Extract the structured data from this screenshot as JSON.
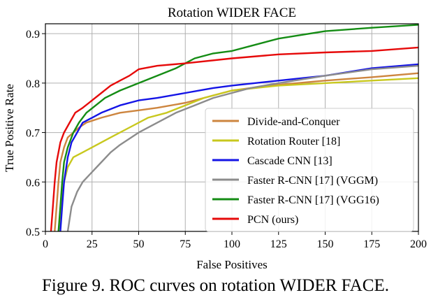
{
  "chart_data": {
    "type": "line",
    "title": "Rotation WIDER FACE",
    "xlabel": "False Positives",
    "ylabel": "True Positive Rate",
    "xlim": [
      0,
      200
    ],
    "ylim": [
      0.5,
      0.92
    ],
    "x_ticks": [
      0,
      25,
      50,
      75,
      100,
      125,
      150,
      175,
      200
    ],
    "x_tick_labels": [
      "0",
      "25",
      "50",
      "75",
      "100",
      "125",
      "150",
      "175",
      "200"
    ],
    "y_ticks": [
      0.5,
      0.6,
      0.7,
      0.8,
      0.9
    ],
    "y_tick_labels": [
      "0.5",
      "0.6",
      "0.7",
      "0.8",
      "0.9"
    ],
    "grid": true,
    "legend_position": "bottom-right",
    "series": [
      {
        "name": "Divide-and-Conquer",
        "color": "#cd853f",
        "points": [
          [
            5,
            0.5
          ],
          [
            6,
            0.55
          ],
          [
            7,
            0.6
          ],
          [
            8,
            0.64
          ],
          [
            10,
            0.67
          ],
          [
            12,
            0.69
          ],
          [
            15,
            0.7
          ],
          [
            18,
            0.71
          ],
          [
            22,
            0.72
          ],
          [
            30,
            0.73
          ],
          [
            40,
            0.74
          ],
          [
            50,
            0.745
          ],
          [
            60,
            0.75
          ],
          [
            75,
            0.76
          ],
          [
            90,
            0.775
          ],
          [
            100,
            0.785
          ],
          [
            120,
            0.795
          ],
          [
            150,
            0.805
          ],
          [
            175,
            0.812
          ],
          [
            200,
            0.82
          ]
        ]
      },
      {
        "name": "Rotation Router [18]",
        "color": "#c8c81e",
        "points": [
          [
            7,
            0.5
          ],
          [
            8,
            0.53
          ],
          [
            9,
            0.57
          ],
          [
            10,
            0.6
          ],
          [
            12,
            0.63
          ],
          [
            15,
            0.65
          ],
          [
            20,
            0.66
          ],
          [
            25,
            0.67
          ],
          [
            30,
            0.68
          ],
          [
            35,
            0.69
          ],
          [
            45,
            0.71
          ],
          [
            55,
            0.73
          ],
          [
            65,
            0.74
          ],
          [
            75,
            0.755
          ],
          [
            85,
            0.77
          ],
          [
            100,
            0.785
          ],
          [
            125,
            0.795
          ],
          [
            150,
            0.8
          ],
          [
            175,
            0.805
          ],
          [
            200,
            0.81
          ]
        ]
      },
      {
        "name": "Cascade CNN [13]",
        "color": "#1414e6",
        "points": [
          [
            8,
            0.5
          ],
          [
            9,
            0.55
          ],
          [
            10,
            0.6
          ],
          [
            12,
            0.65
          ],
          [
            14,
            0.68
          ],
          [
            17,
            0.7
          ],
          [
            20,
            0.72
          ],
          [
            25,
            0.73
          ],
          [
            30,
            0.74
          ],
          [
            40,
            0.755
          ],
          [
            50,
            0.765
          ],
          [
            60,
            0.77
          ],
          [
            75,
            0.78
          ],
          [
            90,
            0.79
          ],
          [
            100,
            0.795
          ],
          [
            125,
            0.805
          ],
          [
            150,
            0.815
          ],
          [
            175,
            0.83
          ],
          [
            200,
            0.838
          ]
        ]
      },
      {
        "name": "Faster R-CNN [17] (VGGM)",
        "color": "#8c8c8c",
        "points": [
          [
            12,
            0.5
          ],
          [
            14,
            0.55
          ],
          [
            17,
            0.58
          ],
          [
            20,
            0.6
          ],
          [
            25,
            0.62
          ],
          [
            30,
            0.64
          ],
          [
            35,
            0.66
          ],
          [
            40,
            0.675
          ],
          [
            50,
            0.7
          ],
          [
            60,
            0.72
          ],
          [
            70,
            0.74
          ],
          [
            80,
            0.755
          ],
          [
            90,
            0.77
          ],
          [
            100,
            0.78
          ],
          [
            110,
            0.79
          ],
          [
            125,
            0.8
          ],
          [
            150,
            0.815
          ],
          [
            175,
            0.828
          ],
          [
            200,
            0.835
          ]
        ]
      },
      {
        "name": "Faster R-CNN [17] (VGG16)",
        "color": "#148c14",
        "points": [
          [
            7,
            0.5
          ],
          [
            8,
            0.55
          ],
          [
            9,
            0.6
          ],
          [
            10,
            0.64
          ],
          [
            12,
            0.67
          ],
          [
            15,
            0.7
          ],
          [
            18,
            0.72
          ],
          [
            22,
            0.74
          ],
          [
            27,
            0.755
          ],
          [
            32,
            0.77
          ],
          [
            40,
            0.785
          ],
          [
            50,
            0.8
          ],
          [
            60,
            0.815
          ],
          [
            70,
            0.83
          ],
          [
            80,
            0.85
          ],
          [
            90,
            0.86
          ],
          [
            100,
            0.865
          ],
          [
            110,
            0.875
          ],
          [
            125,
            0.89
          ],
          [
            150,
            0.905
          ],
          [
            175,
            0.912
          ],
          [
            200,
            0.918
          ]
        ]
      },
      {
        "name": "PCN (ours)",
        "color": "#e60a0a",
        "points": [
          [
            3,
            0.5
          ],
          [
            4,
            0.55
          ],
          [
            5,
            0.6
          ],
          [
            6,
            0.64
          ],
          [
            7,
            0.66
          ],
          [
            8,
            0.68
          ],
          [
            10,
            0.7
          ],
          [
            13,
            0.72
          ],
          [
            16,
            0.74
          ],
          [
            20,
            0.75
          ],
          [
            25,
            0.765
          ],
          [
            30,
            0.78
          ],
          [
            35,
            0.795
          ],
          [
            40,
            0.805
          ],
          [
            45,
            0.815
          ],
          [
            50,
            0.828
          ],
          [
            60,
            0.835
          ],
          [
            75,
            0.84
          ],
          [
            100,
            0.85
          ],
          [
            125,
            0.858
          ],
          [
            150,
            0.862
          ],
          [
            175,
            0.865
          ],
          [
            200,
            0.872
          ]
        ]
      }
    ]
  },
  "caption": "Figure 9. ROC curves on rotation WIDER FACE."
}
